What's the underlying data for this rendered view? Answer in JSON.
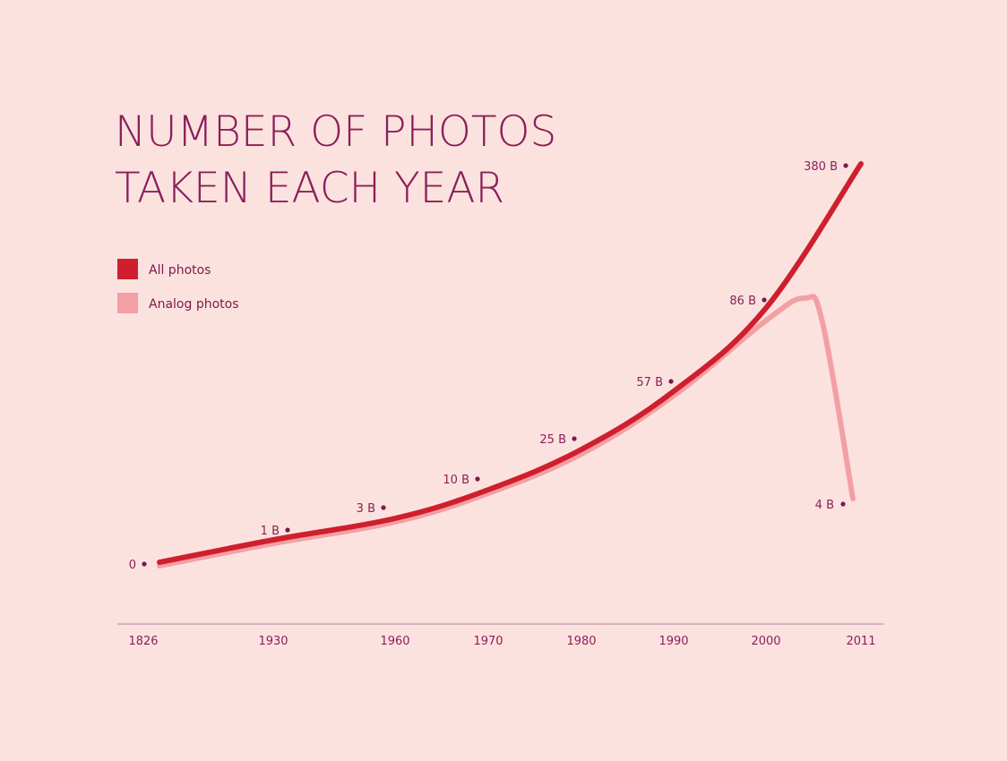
{
  "chart_data": {
    "type": "line",
    "title_lines": [
      "NUMBER OF PHOTOS",
      "TAKEN EACH YEAR"
    ],
    "xlabel": "",
    "ylabel": "",
    "x": [
      "1826",
      "1930",
      "1960",
      "1970",
      "1980",
      "1990",
      "2000",
      "2011"
    ],
    "series": [
      {
        "name": "All photos",
        "color": "#cf1f2e",
        "values": [
          0,
          1,
          3,
          10,
          25,
          57,
          86,
          380
        ]
      },
      {
        "name": "Analog photos",
        "color": "#f2a0a4",
        "values": [
          0,
          1,
          3,
          10,
          25,
          57,
          86,
          4
        ]
      }
    ],
    "data_labels": [
      "0",
      "1 B",
      "3 B",
      "10 B",
      "25 B",
      "57 B",
      "86 B",
      "380 B"
    ],
    "analog_end_label": "4 B",
    "grid": false,
    "legend_position": "top-left",
    "colors": {
      "background": "#fce2df",
      "text": "#8a1f5a",
      "axis": "#c9a3b4",
      "dot": "#7a1a4a"
    }
  }
}
